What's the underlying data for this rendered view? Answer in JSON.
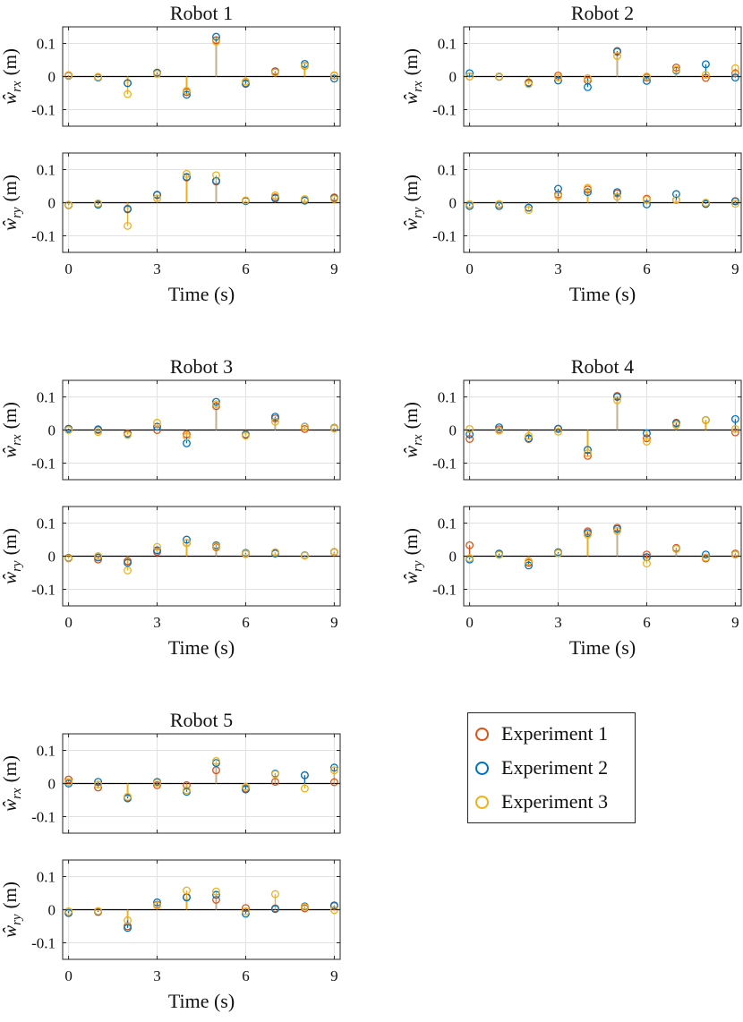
{
  "colors": {
    "experiment_1": "#D95319",
    "experiment_2": "#0072BD",
    "experiment_3": "#EDB120",
    "axis": "#262626",
    "grid": "#e1e1e1"
  },
  "chart_data": [
    {
      "type": "scatter",
      "title": "Robot 1",
      "xlabel": "Time (s)",
      "x": [
        0,
        1,
        2,
        3,
        4,
        5,
        6,
        7,
        8,
        9
      ],
      "xticks": [
        "0",
        "3",
        "6",
        "9"
      ],
      "xlim": [
        -0.2,
        9.2
      ],
      "panels": [
        {
          "ylabel_symbol": "ŵ",
          "ylabel_sub": "rx",
          "ylabel_unit": "(m)",
          "ylim": [
            -0.15,
            0.15
          ],
          "yticks": [
            "0.1",
            "0",
            "-0.1"
          ],
          "series": [
            {
              "name": "Experiment 1",
              "values": [
                0.004,
                -0.002,
                -0.02,
                0.012,
                -0.047,
                0.11,
                -0.02,
                0.016,
                0.032,
                0.003
              ]
            },
            {
              "name": "Experiment 2",
              "values": [
                0.002,
                -0.003,
                -0.02,
                0.011,
                -0.055,
                0.12,
                -0.022,
                0.013,
                0.038,
                -0.006
              ]
            },
            {
              "name": "Experiment 3",
              "values": [
                0.003,
                -0.001,
                -0.053,
                0.008,
                -0.043,
                0.105,
                -0.015,
                0.012,
                0.033,
                0.004
              ]
            }
          ]
        },
        {
          "ylabel_symbol": "ŵ",
          "ylabel_sub": "ry",
          "ylabel_unit": "(m)",
          "ylim": [
            -0.15,
            0.15
          ],
          "yticks": [
            "0.1",
            "0",
            "-0.1"
          ],
          "series": [
            {
              "name": "Experiment 1",
              "values": [
                -0.007,
                -0.004,
                -0.018,
                0.023,
                0.076,
                0.064,
                0.005,
                0.016,
                0.01,
                0.016
              ]
            },
            {
              "name": "Experiment 2",
              "values": [
                -0.007,
                -0.006,
                -0.02,
                0.024,
                0.078,
                0.066,
                0.005,
                0.013,
                0.006,
                0.013
              ]
            },
            {
              "name": "Experiment 3",
              "values": [
                -0.006,
                -0.002,
                -0.07,
                0.013,
                0.087,
                0.083,
                0.007,
                0.022,
                0.011,
                0.011
              ]
            }
          ]
        }
      ]
    },
    {
      "type": "scatter",
      "title": "Robot 2",
      "xlabel": "Time (s)",
      "x": [
        0,
        1,
        2,
        3,
        4,
        5,
        6,
        7,
        8,
        9
      ],
      "xticks": [
        "0",
        "3",
        "6",
        "9"
      ],
      "xlim": [
        -0.2,
        9.2
      ],
      "panels": [
        {
          "ylabel_symbol": "ŵ",
          "ylabel_sub": "rx",
          "ylabel_unit": "(m)",
          "ylim": [
            -0.15,
            0.15
          ],
          "yticks": [
            "0.1",
            "0",
            "-0.1"
          ],
          "series": [
            {
              "name": "Experiment 1",
              "values": [
                0.0,
                0.0,
                -0.018,
                0.003,
                -0.012,
                0.077,
                -0.003,
                0.027,
                -0.004,
                0.01
              ]
            },
            {
              "name": "Experiment 2",
              "values": [
                0.01,
                -0.001,
                -0.02,
                -0.012,
                -0.032,
                0.075,
                -0.013,
                0.018,
                0.037,
                -0.003
              ]
            },
            {
              "name": "Experiment 3",
              "values": [
                0.0,
                0.0,
                -0.023,
                -0.003,
                -0.005,
                0.062,
                0.0,
                0.02,
                0.005,
                0.025
              ]
            }
          ]
        },
        {
          "ylabel_symbol": "ŵ",
          "ylabel_sub": "ry",
          "ylabel_unit": "(m)",
          "ylim": [
            -0.15,
            0.15
          ],
          "yticks": [
            "0.1",
            "0",
            "-0.1"
          ],
          "series": [
            {
              "name": "Experiment 1",
              "values": [
                -0.005,
                -0.005,
                -0.015,
                0.025,
                0.04,
                0.028,
                0.012,
                0.008,
                -0.003,
                0.005
              ]
            },
            {
              "name": "Experiment 2",
              "values": [
                -0.01,
                -0.01,
                -0.015,
                0.042,
                0.032,
                0.032,
                -0.005,
                0.026,
                -0.004,
                0.004
              ]
            },
            {
              "name": "Experiment 3",
              "values": [
                -0.005,
                -0.004,
                -0.022,
                0.02,
                0.045,
                0.018,
                0.009,
                0.009,
                0.0,
                -0.003
              ]
            }
          ]
        }
      ]
    },
    {
      "type": "scatter",
      "title": "Robot 3",
      "xlabel": "Time (s)",
      "x": [
        0,
        1,
        2,
        3,
        4,
        5,
        6,
        7,
        8,
        9
      ],
      "xticks": [
        "0",
        "3",
        "6",
        "9"
      ],
      "xlim": [
        -0.2,
        9.2
      ],
      "panels": [
        {
          "ylabel_symbol": "ŵ",
          "ylabel_sub": "rx",
          "ylabel_unit": "(m)",
          "ylim": [
            -0.15,
            0.15
          ],
          "yticks": [
            "0.1",
            "0",
            "-0.1"
          ],
          "series": [
            {
              "name": "Experiment 1",
              "values": [
                0.002,
                0.0,
                -0.01,
                0.0,
                -0.013,
                0.072,
                -0.013,
                0.035,
                0.003,
                0.005
              ]
            },
            {
              "name": "Experiment 2",
              "values": [
                0.004,
                0.002,
                -0.012,
                0.01,
                -0.04,
                0.085,
                -0.015,
                0.04,
                0.01,
                0.007
              ]
            },
            {
              "name": "Experiment 3",
              "values": [
                0.0,
                -0.006,
                -0.015,
                0.022,
                -0.02,
                0.078,
                -0.017,
                0.025,
                0.009,
                0.006
              ]
            }
          ]
        },
        {
          "ylabel_symbol": "ŵ",
          "ylabel_sub": "ry",
          "ylabel_unit": "(m)",
          "ylim": [
            -0.15,
            0.15
          ],
          "yticks": [
            "0.1",
            "0",
            "-0.1"
          ],
          "series": [
            {
              "name": "Experiment 1",
              "values": [
                -0.005,
                -0.01,
                -0.015,
                0.013,
                0.04,
                0.027,
                0.007,
                0.01,
                0.002,
                0.012
              ]
            },
            {
              "name": "Experiment 2",
              "values": [
                -0.006,
                -0.004,
                -0.02,
                0.018,
                0.05,
                0.033,
                0.01,
                0.008,
                0.003,
                0.013
              ]
            },
            {
              "name": "Experiment 3",
              "values": [
                -0.007,
                0.0,
                -0.043,
                0.028,
                0.04,
                0.03,
                0.008,
                0.012,
                0.002,
                0.013
              ]
            }
          ]
        }
      ]
    },
    {
      "type": "scatter",
      "title": "Robot 4",
      "xlabel": "Time (s)",
      "x": [
        0,
        1,
        2,
        3,
        4,
        5,
        6,
        7,
        8,
        9
      ],
      "xticks": [
        "0",
        "3",
        "6",
        "9"
      ],
      "xlim": [
        -0.2,
        9.2
      ],
      "panels": [
        {
          "ylabel_symbol": "ŵ",
          "ylabel_sub": "rx",
          "ylabel_unit": "(m)",
          "ylim": [
            -0.15,
            0.15
          ],
          "yticks": [
            "0.1",
            "0",
            "-0.1"
          ],
          "series": [
            {
              "name": "Experiment 1",
              "values": [
                -0.027,
                0.002,
                -0.027,
                0.003,
                -0.078,
                0.103,
                -0.025,
                0.022,
                0.03,
                -0.007
              ]
            },
            {
              "name": "Experiment 2",
              "values": [
                -0.013,
                0.008,
                -0.025,
                0.004,
                -0.06,
                0.1,
                -0.01,
                0.02,
                0.03,
                0.033
              ]
            },
            {
              "name": "Experiment 3",
              "values": [
                0.003,
                -0.002,
                -0.018,
                -0.005,
                -0.07,
                0.09,
                -0.035,
                0.015,
                0.03,
                0.003
              ]
            }
          ]
        },
        {
          "ylabel_symbol": "ŵ",
          "ylabel_sub": "ry",
          "ylabel_unit": "(m)",
          "ylim": [
            -0.15,
            0.15
          ],
          "yticks": [
            "0.1",
            "0",
            "-0.1"
          ],
          "series": [
            {
              "name": "Experiment 1",
              "values": [
                0.033,
                0.005,
                -0.02,
                0.01,
                0.075,
                0.086,
                0.005,
                0.025,
                -0.007,
                0.008
              ]
            },
            {
              "name": "Experiment 2",
              "values": [
                -0.01,
                0.008,
                -0.028,
                0.012,
                0.07,
                0.082,
                -0.003,
                0.022,
                0.005,
                0.005
              ]
            },
            {
              "name": "Experiment 3",
              "values": [
                -0.006,
                0.004,
                -0.015,
                0.009,
                0.065,
                0.076,
                -0.022,
                0.022,
                -0.004,
                0.005
              ]
            }
          ]
        }
      ]
    },
    {
      "type": "scatter",
      "title": "Robot 5",
      "xlabel": "Time (s)",
      "x": [
        0,
        1,
        2,
        3,
        4,
        5,
        6,
        7,
        8,
        9
      ],
      "xticks": [
        "0",
        "3",
        "6",
        "9"
      ],
      "xlim": [
        -0.2,
        9.2
      ],
      "panels": [
        {
          "ylabel_symbol": "ŵ",
          "ylabel_sub": "rx",
          "ylabel_unit": "(m)",
          "ylim": [
            -0.15,
            0.15
          ],
          "yticks": [
            "0.1",
            "0",
            "-0.1"
          ],
          "series": [
            {
              "name": "Experiment 1",
              "values": [
                0.012,
                -0.012,
                -0.042,
                -0.005,
                -0.005,
                0.04,
                -0.015,
                0.005,
                0.025,
                0.004
              ]
            },
            {
              "name": "Experiment 2",
              "values": [
                0.0,
                0.005,
                -0.045,
                0.005,
                -0.025,
                0.062,
                -0.018,
                0.03,
                0.025,
                0.048
              ]
            },
            {
              "name": "Experiment 3",
              "values": [
                0.005,
                -0.003,
                -0.04,
                0.002,
                -0.02,
                0.068,
                -0.01,
                0.028,
                -0.015,
                0.04
              ]
            }
          ]
        },
        {
          "ylabel_symbol": "ŵ",
          "ylabel_sub": "ry",
          "ylabel_unit": "(m)",
          "ylim": [
            -0.15,
            0.15
          ],
          "yticks": [
            "0.1",
            "0",
            "-0.1"
          ],
          "series": [
            {
              "name": "Experiment 1",
              "values": [
                -0.01,
                -0.007,
                -0.05,
                0.015,
                0.038,
                0.03,
                0.005,
                0.004,
                0.004,
                0.011
              ]
            },
            {
              "name": "Experiment 2",
              "values": [
                -0.01,
                -0.005,
                -0.055,
                0.022,
                0.037,
                0.045,
                -0.012,
                0.002,
                0.01,
                0.013
              ]
            },
            {
              "name": "Experiment 3",
              "values": [
                -0.005,
                -0.004,
                -0.032,
                0.013,
                0.058,
                0.055,
                -0.005,
                0.047,
                0.008,
                -0.001
              ]
            }
          ]
        }
      ]
    }
  ],
  "legend": {
    "entries": [
      {
        "label": "Experiment 1",
        "color": "#D95319"
      },
      {
        "label": "Experiment 2",
        "color": "#0072BD"
      },
      {
        "label": "Experiment 3",
        "color": "#EDB120"
      }
    ]
  }
}
